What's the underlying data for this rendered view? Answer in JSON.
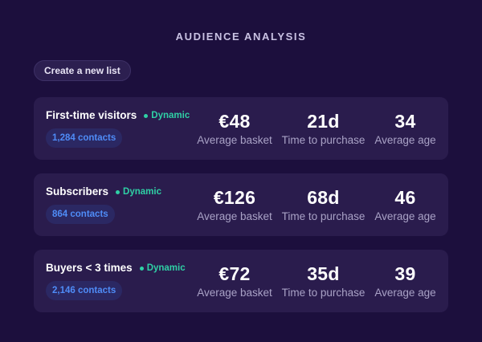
{
  "header": {
    "title": "AUDIENCE ANALYSIS"
  },
  "toolbar": {
    "create_label": "Create a new list"
  },
  "lists": [
    {
      "name": "First-time visitors",
      "tag": "Dynamic",
      "contacts": "1,284 contacts",
      "metrics": [
        {
          "value": "€48",
          "label": "Average basket"
        },
        {
          "value": "21d",
          "label": "Time to purchase"
        },
        {
          "value": "34",
          "label": "Average age"
        }
      ]
    },
    {
      "name": "Subscribers",
      "tag": "Dynamic",
      "contacts": "864 contacts",
      "metrics": [
        {
          "value": "€126",
          "label": "Average basket"
        },
        {
          "value": "68d",
          "label": "Time to purchase"
        },
        {
          "value": "46",
          "label": "Average age"
        }
      ]
    },
    {
      "name": "Buyers < 3 times",
      "tag": "Dynamic",
      "contacts": "2,146 contacts",
      "metrics": [
        {
          "value": "€72",
          "label": "Average basket"
        },
        {
          "value": "35d",
          "label": "Time to purchase"
        },
        {
          "value": "39",
          "label": "Average age"
        }
      ]
    }
  ],
  "colors": {
    "background": "#1c0f3d",
    "card": "#2a1c4d",
    "dynamic_green": "#2fd0a5",
    "contacts_blue": "#4f8cf7"
  }
}
